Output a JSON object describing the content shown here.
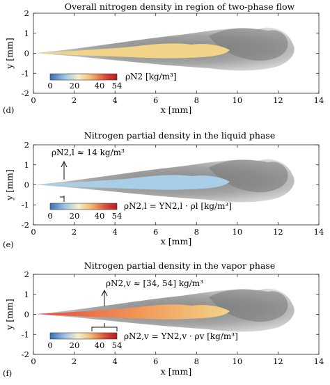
{
  "panels": [
    {
      "id": "d",
      "title": "Overall nitrogen density in region of two-phase flow",
      "panel_label": "(d)",
      "core_color": "#f2d488",
      "colorbar": {
        "ticks": [
          "0",
          "20",
          "40",
          "54"
        ]
      },
      "equation": "ρN2 [kg/m³]",
      "annotation": ""
    },
    {
      "id": "e",
      "title": "Nitrogen partial density in the liquid phase",
      "panel_label": "(e)",
      "core_color": "#a9cfe8",
      "colorbar": {
        "ticks": [
          "0",
          "20",
          "40",
          "54"
        ]
      },
      "equation": "ρN2,l = YN2,l · ρl [kg/m³]",
      "annotation": "ρN2,l ≈ 14 kg/m³"
    },
    {
      "id": "f",
      "title": "Nitrogen partial density in the vapor phase",
      "panel_label": "(f)",
      "core_color": "#f2d488",
      "colorbar": {
        "ticks": [
          "0",
          "20",
          "40",
          "54"
        ]
      },
      "equation": "ρN2,v = YN2,v · ρv [kg/m³]",
      "annotation": "ρN2,v ≈ [34, 54] kg/m³"
    }
  ],
  "axes": {
    "xlabel": "x [mm]",
    "ylabel": "y [mm]",
    "xticks": [
      "0",
      "2",
      "4",
      "6",
      "8",
      "10",
      "12",
      "14"
    ],
    "yticks": [
      "2",
      "1",
      "0",
      "-1",
      "-2"
    ]
  },
  "colors": {
    "colormap": [
      "#3a6fb0",
      "#9cc3e4",
      "#f6efcd",
      "#f0b770",
      "#d8513c",
      "#b01e26"
    ],
    "gas_dark": "#6a6a6a",
    "gas_light": "#d6d6d6"
  }
}
